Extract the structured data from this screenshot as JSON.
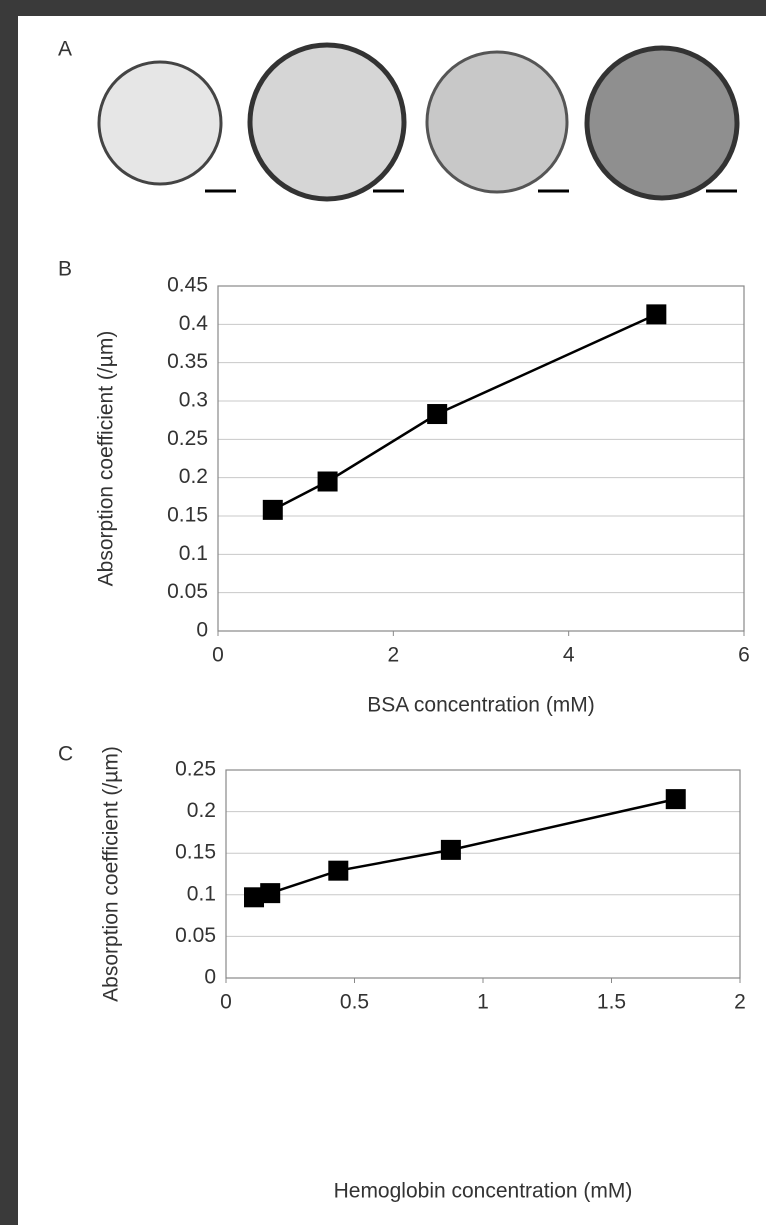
{
  "panel_a": {
    "label": "A"
  },
  "chart_data": [
    {
      "type": "line",
      "panel_label": "B",
      "ylabel": "Absorption coefficient (/µm)",
      "xlabel": "BSA concentration (mM)",
      "x": [
        0.625,
        1.25,
        2.5,
        5
      ],
      "values": [
        0.158,
        0.195,
        0.283,
        0.413
      ],
      "color": "#000000",
      "marker": "square",
      "xlim": [
        0,
        6
      ],
      "xticks": [
        0,
        2,
        4,
        6
      ],
      "ylim": [
        0,
        0.45
      ],
      "yticks": [
        0,
        0.05,
        0.1,
        0.15,
        0.2,
        0.25,
        0.3,
        0.35,
        0.4,
        0.45
      ],
      "grid": true
    },
    {
      "type": "line",
      "panel_label": "C",
      "ylabel": "Absorption coefficient (/µm)",
      "xlabel": "Hemoglobin concentration (mM)",
      "x": [
        0.109,
        0.172,
        0.437,
        0.875,
        1.75
      ],
      "values": [
        0.097,
        0.102,
        0.129,
        0.154,
        0.215
      ],
      "color": "#000000",
      "marker": "square",
      "xlim": [
        0,
        2
      ],
      "xticks": [
        0,
        0.5,
        1,
        1.5,
        2
      ],
      "ylim": [
        0,
        0.25
      ],
      "yticks": [
        0,
        0.05,
        0.1,
        0.15,
        0.2,
        0.25
      ],
      "grid": true
    }
  ]
}
